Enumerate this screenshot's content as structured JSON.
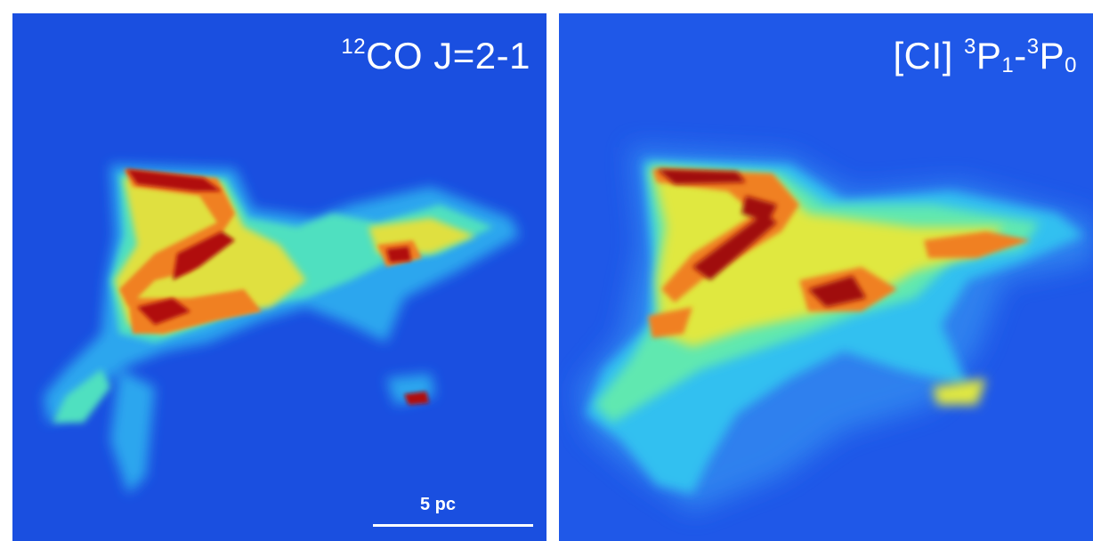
{
  "panels": [
    {
      "title_parts": {
        "sup_mass": "12",
        "molecule": "CO J=2-1"
      },
      "scale_bar": {
        "label": "5 pc"
      }
    },
    {
      "title_parts": {
        "element": "[CI] ",
        "sup1": "3",
        "p1": "P",
        "sub1": "1",
        "dash": "-",
        "sup2": "3",
        "p2": "P",
        "sub2": "0"
      }
    }
  ],
  "colors": {
    "background_left": "#1a4fe0",
    "background_right": "#1f58e8",
    "colormap": [
      "#1a4fe0",
      "#2fa8f0",
      "#4fe0c8",
      "#c8f050",
      "#f0e040",
      "#f08020",
      "#d02010",
      "#700808"
    ]
  }
}
